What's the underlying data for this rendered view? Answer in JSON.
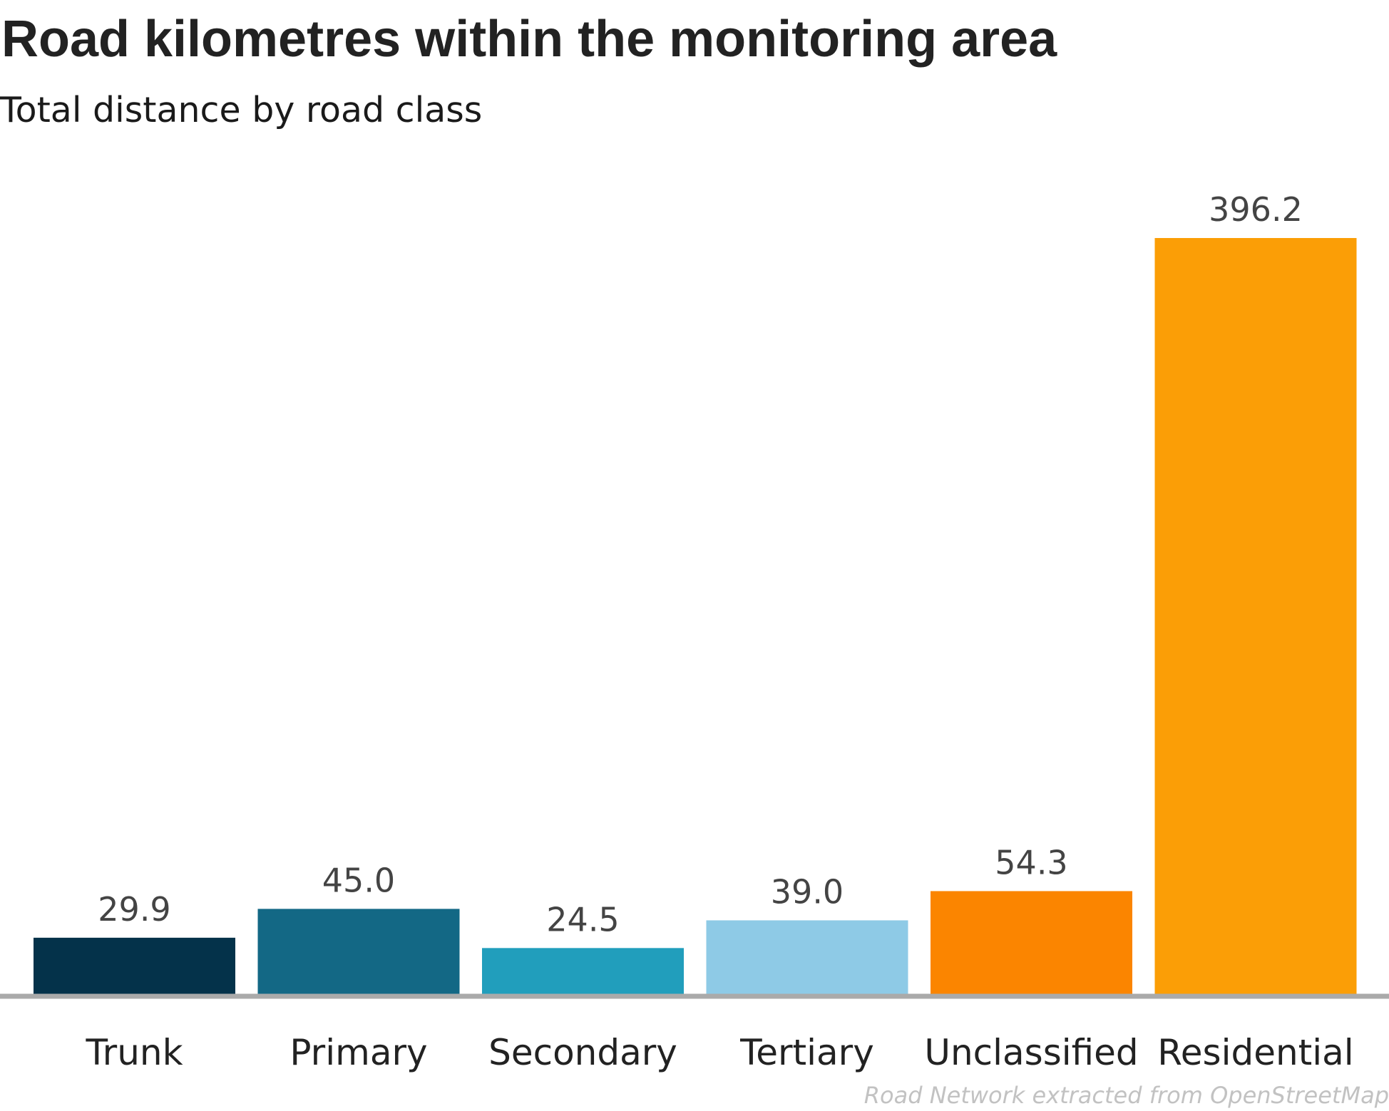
{
  "chart_data": {
    "type": "bar",
    "title": "Road kilometres within the monitoring area",
    "subtitle": "Total distance by road class",
    "caption": "Road Network extracted from OpenStreetMap",
    "xlabel": "",
    "ylabel": "",
    "categories": [
      "Trunk",
      "Primary",
      "Secondary",
      "Tertiary",
      "Unclassified",
      "Residential"
    ],
    "values": [
      29.9,
      45.0,
      24.5,
      39.0,
      54.3,
      396.2
    ],
    "value_labels": [
      "29.9",
      "45.0",
      "24.5",
      "39.0",
      "54.3",
      "396.2"
    ],
    "colors": [
      "#04324a",
      "#136885",
      "#219ebc",
      "#8ecae6",
      "#fb8500",
      "#fb9e06"
    ],
    "baseline_color": "#aaaaaa",
    "ylim": [
      0,
      396.2
    ],
    "grid": false,
    "legend": "none"
  }
}
